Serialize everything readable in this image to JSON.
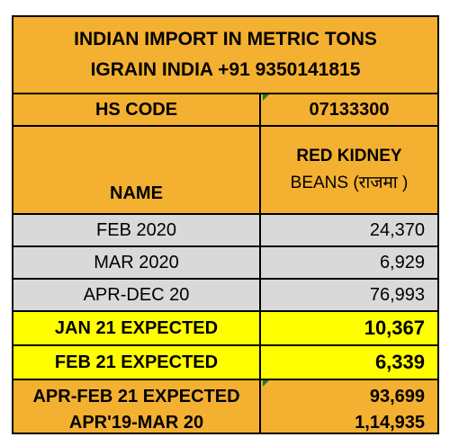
{
  "title_line1": "INDIAN IMPORT IN METRIC TONS",
  "title_line2": "IGRAIN INDIA +91 9350141815",
  "hs_code_label": "HS CODE",
  "hs_code_value": "07133300",
  "name_label": "NAME",
  "variety_line1": "RED KIDNEY",
  "variety_line2": "BEANS (राजमा )",
  "rows": [
    {
      "label": "FEB 2020",
      "value": "24,370"
    },
    {
      "label": "MAR 2020",
      "value": "6,929"
    },
    {
      "label": "APR-DEC 20",
      "value": "76,993"
    },
    {
      "label": "JAN 21 EXPECTED",
      "value": "10,367"
    },
    {
      "label": "FEB 21 EXPECTED",
      "value": "6,339"
    },
    {
      "label": "APR-FEB 21 EXPECTED",
      "value": "93,699"
    },
    {
      "label": "APR'19-MAR 20",
      "value": "1,14,935"
    }
  ],
  "colors": {
    "orange": "#f4b030",
    "gray": "#d9d9d9",
    "yellow": "#ffff00"
  }
}
